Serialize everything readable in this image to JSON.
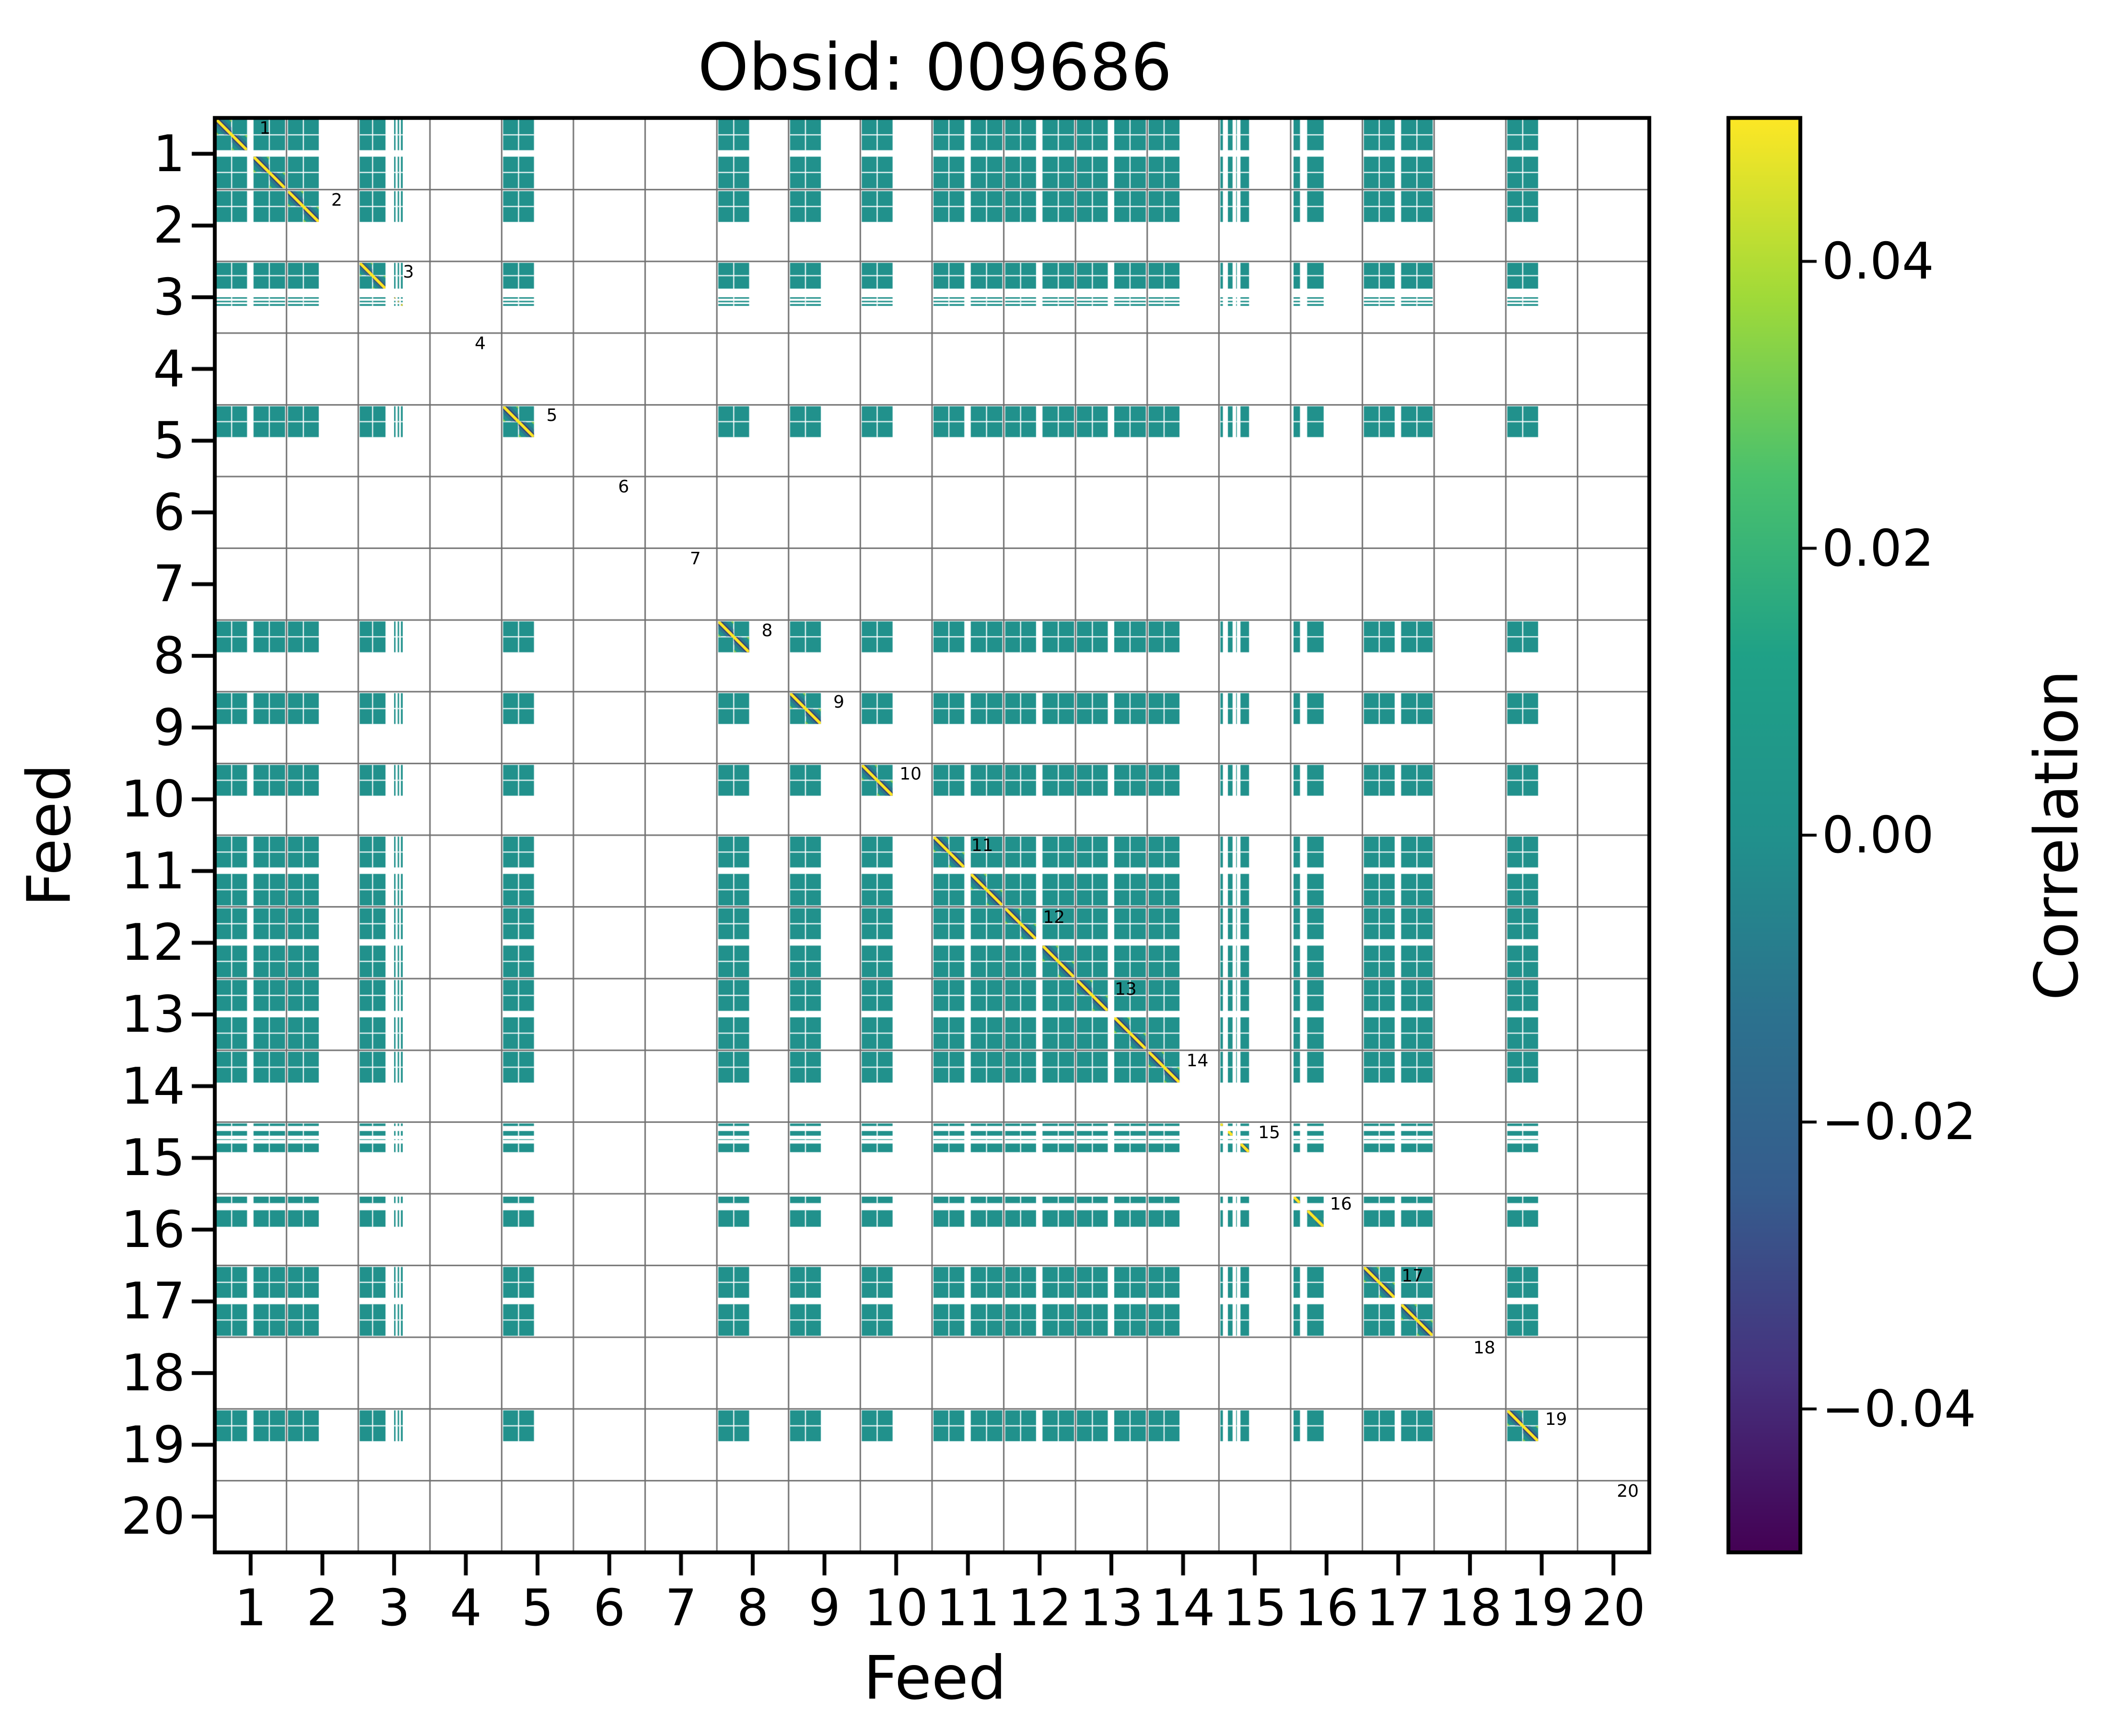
{
  "title": "Obsid: 009686",
  "axes": {
    "xlabel": "Feed",
    "ylabel": "Feed",
    "x_tick_labels": [
      "1",
      "2",
      "3",
      "4",
      "5",
      "6",
      "7",
      "8",
      "9",
      "10",
      "11",
      "12",
      "13",
      "14",
      "15",
      "16",
      "17",
      "18",
      "19",
      "20"
    ],
    "y_tick_labels": [
      "1",
      "2",
      "3",
      "4",
      "5",
      "6",
      "7",
      "8",
      "9",
      "10",
      "11",
      "12",
      "13",
      "14",
      "15",
      "16",
      "17",
      "18",
      "19",
      "20"
    ]
  },
  "colorbar": {
    "label": "Correlation",
    "tick_labels": [
      "0.04",
      "0.02",
      "0.00",
      "−0.02",
      "−0.04"
    ],
    "tick_values": [
      0.04,
      0.02,
      0.0,
      -0.02,
      -0.04
    ],
    "vmin": -0.05,
    "vmax": 0.05,
    "colormap": "viridis",
    "gradient_stops_top_to_bottom": [
      "#fde725",
      "#a0da39",
      "#4ac16d",
      "#1fa187",
      "#21918c",
      "#2c728e",
      "#365c8d",
      "#46327e",
      "#440154"
    ]
  },
  "colors": {
    "background": "#ffffff",
    "zero_correlation_fill": "#21918c",
    "diagonal_line": "#fde725",
    "near_diagonal_dark": "#362d70",
    "near_diagonal_soft": "#3b528b",
    "off_diagonal_accent": "#90d743",
    "gridline": "#707070",
    "spine": "#000000",
    "masked": "#ffffff"
  },
  "chart_data": {
    "type": "heatmap",
    "title": "Obsid: 009686",
    "xlabel": "Feed",
    "ylabel": "Feed",
    "n_feeds": 20,
    "feed_categories": [
      1,
      2,
      3,
      4,
      5,
      6,
      7,
      8,
      9,
      10,
      11,
      12,
      13,
      14,
      15,
      16,
      17,
      18,
      19,
      20
    ],
    "diag_labels": [
      "1",
      "2",
      "3",
      "4",
      "5",
      "6",
      "7",
      "8",
      "9",
      "10",
      "11",
      "12",
      "13",
      "14",
      "15",
      "16",
      "17",
      "18",
      "19",
      "20"
    ],
    "legend_position": "right-colorbar",
    "grid": true,
    "value_range_shown": [
      -0.05,
      0.05
    ],
    "offdiagonal_correlation_approx": 0.0,
    "diagonal_correlation_clipped_to_vmax": true,
    "empty_feeds": [
      4,
      6,
      7,
      18,
      20
    ],
    "active_feeds": [
      1,
      2,
      3,
      5,
      8,
      9,
      10,
      11,
      12,
      13,
      14,
      15,
      16,
      17,
      19
    ],
    "feeds": [
      {
        "feed": 1,
        "segments": [
          [
            0.0,
            0.47
          ],
          [
            0.52,
            1.0
          ]
        ]
      },
      {
        "feed": 2,
        "segments": [
          [
            0.0,
            0.47
          ]
        ]
      },
      {
        "feed": 3,
        "segments": [
          [
            0.0,
            0.4
          ],
          [
            0.43,
            0.47
          ],
          [
            0.5,
            0.52
          ],
          [
            0.55,
            0.57
          ],
          [
            0.6,
            0.615
          ]
        ]
      },
      {
        "feed": 4,
        "segments": []
      },
      {
        "feed": 5,
        "segments": [
          [
            0.0,
            0.47
          ]
        ]
      },
      {
        "feed": 6,
        "segments": []
      },
      {
        "feed": 7,
        "segments": []
      },
      {
        "feed": 8,
        "segments": [
          [
            0.0,
            0.47
          ]
        ]
      },
      {
        "feed": 9,
        "segments": [
          [
            0.0,
            0.47
          ]
        ]
      },
      {
        "feed": 10,
        "segments": [
          [
            0.0,
            0.47
          ]
        ]
      },
      {
        "feed": 11,
        "segments": [
          [
            0.0,
            0.47
          ],
          [
            0.52,
            1.0
          ]
        ]
      },
      {
        "feed": 12,
        "segments": [
          [
            0.0,
            0.47
          ],
          [
            0.52,
            1.0
          ]
        ]
      },
      {
        "feed": 13,
        "segments": [
          [
            0.0,
            0.47
          ],
          [
            0.52,
            1.0
          ]
        ]
      },
      {
        "feed": 14,
        "segments": [
          [
            0.0,
            0.47
          ]
        ]
      },
      {
        "feed": 15,
        "segments": [
          [
            0.0,
            0.075
          ],
          [
            0.105,
            0.21
          ],
          [
            0.23,
            0.26
          ],
          [
            0.28,
            0.44
          ]
        ]
      },
      {
        "feed": 16,
        "segments": [
          [
            0.02,
            0.15
          ],
          [
            0.21,
            0.48
          ]
        ]
      },
      {
        "feed": 17,
        "segments": [
          [
            0.0,
            0.47
          ],
          [
            0.52,
            1.0
          ]
        ]
      },
      {
        "feed": 18,
        "segments": []
      },
      {
        "feed": 19,
        "segments": [
          [
            0.0,
            0.47
          ]
        ]
      },
      {
        "feed": 20,
        "segments": []
      }
    ]
  }
}
